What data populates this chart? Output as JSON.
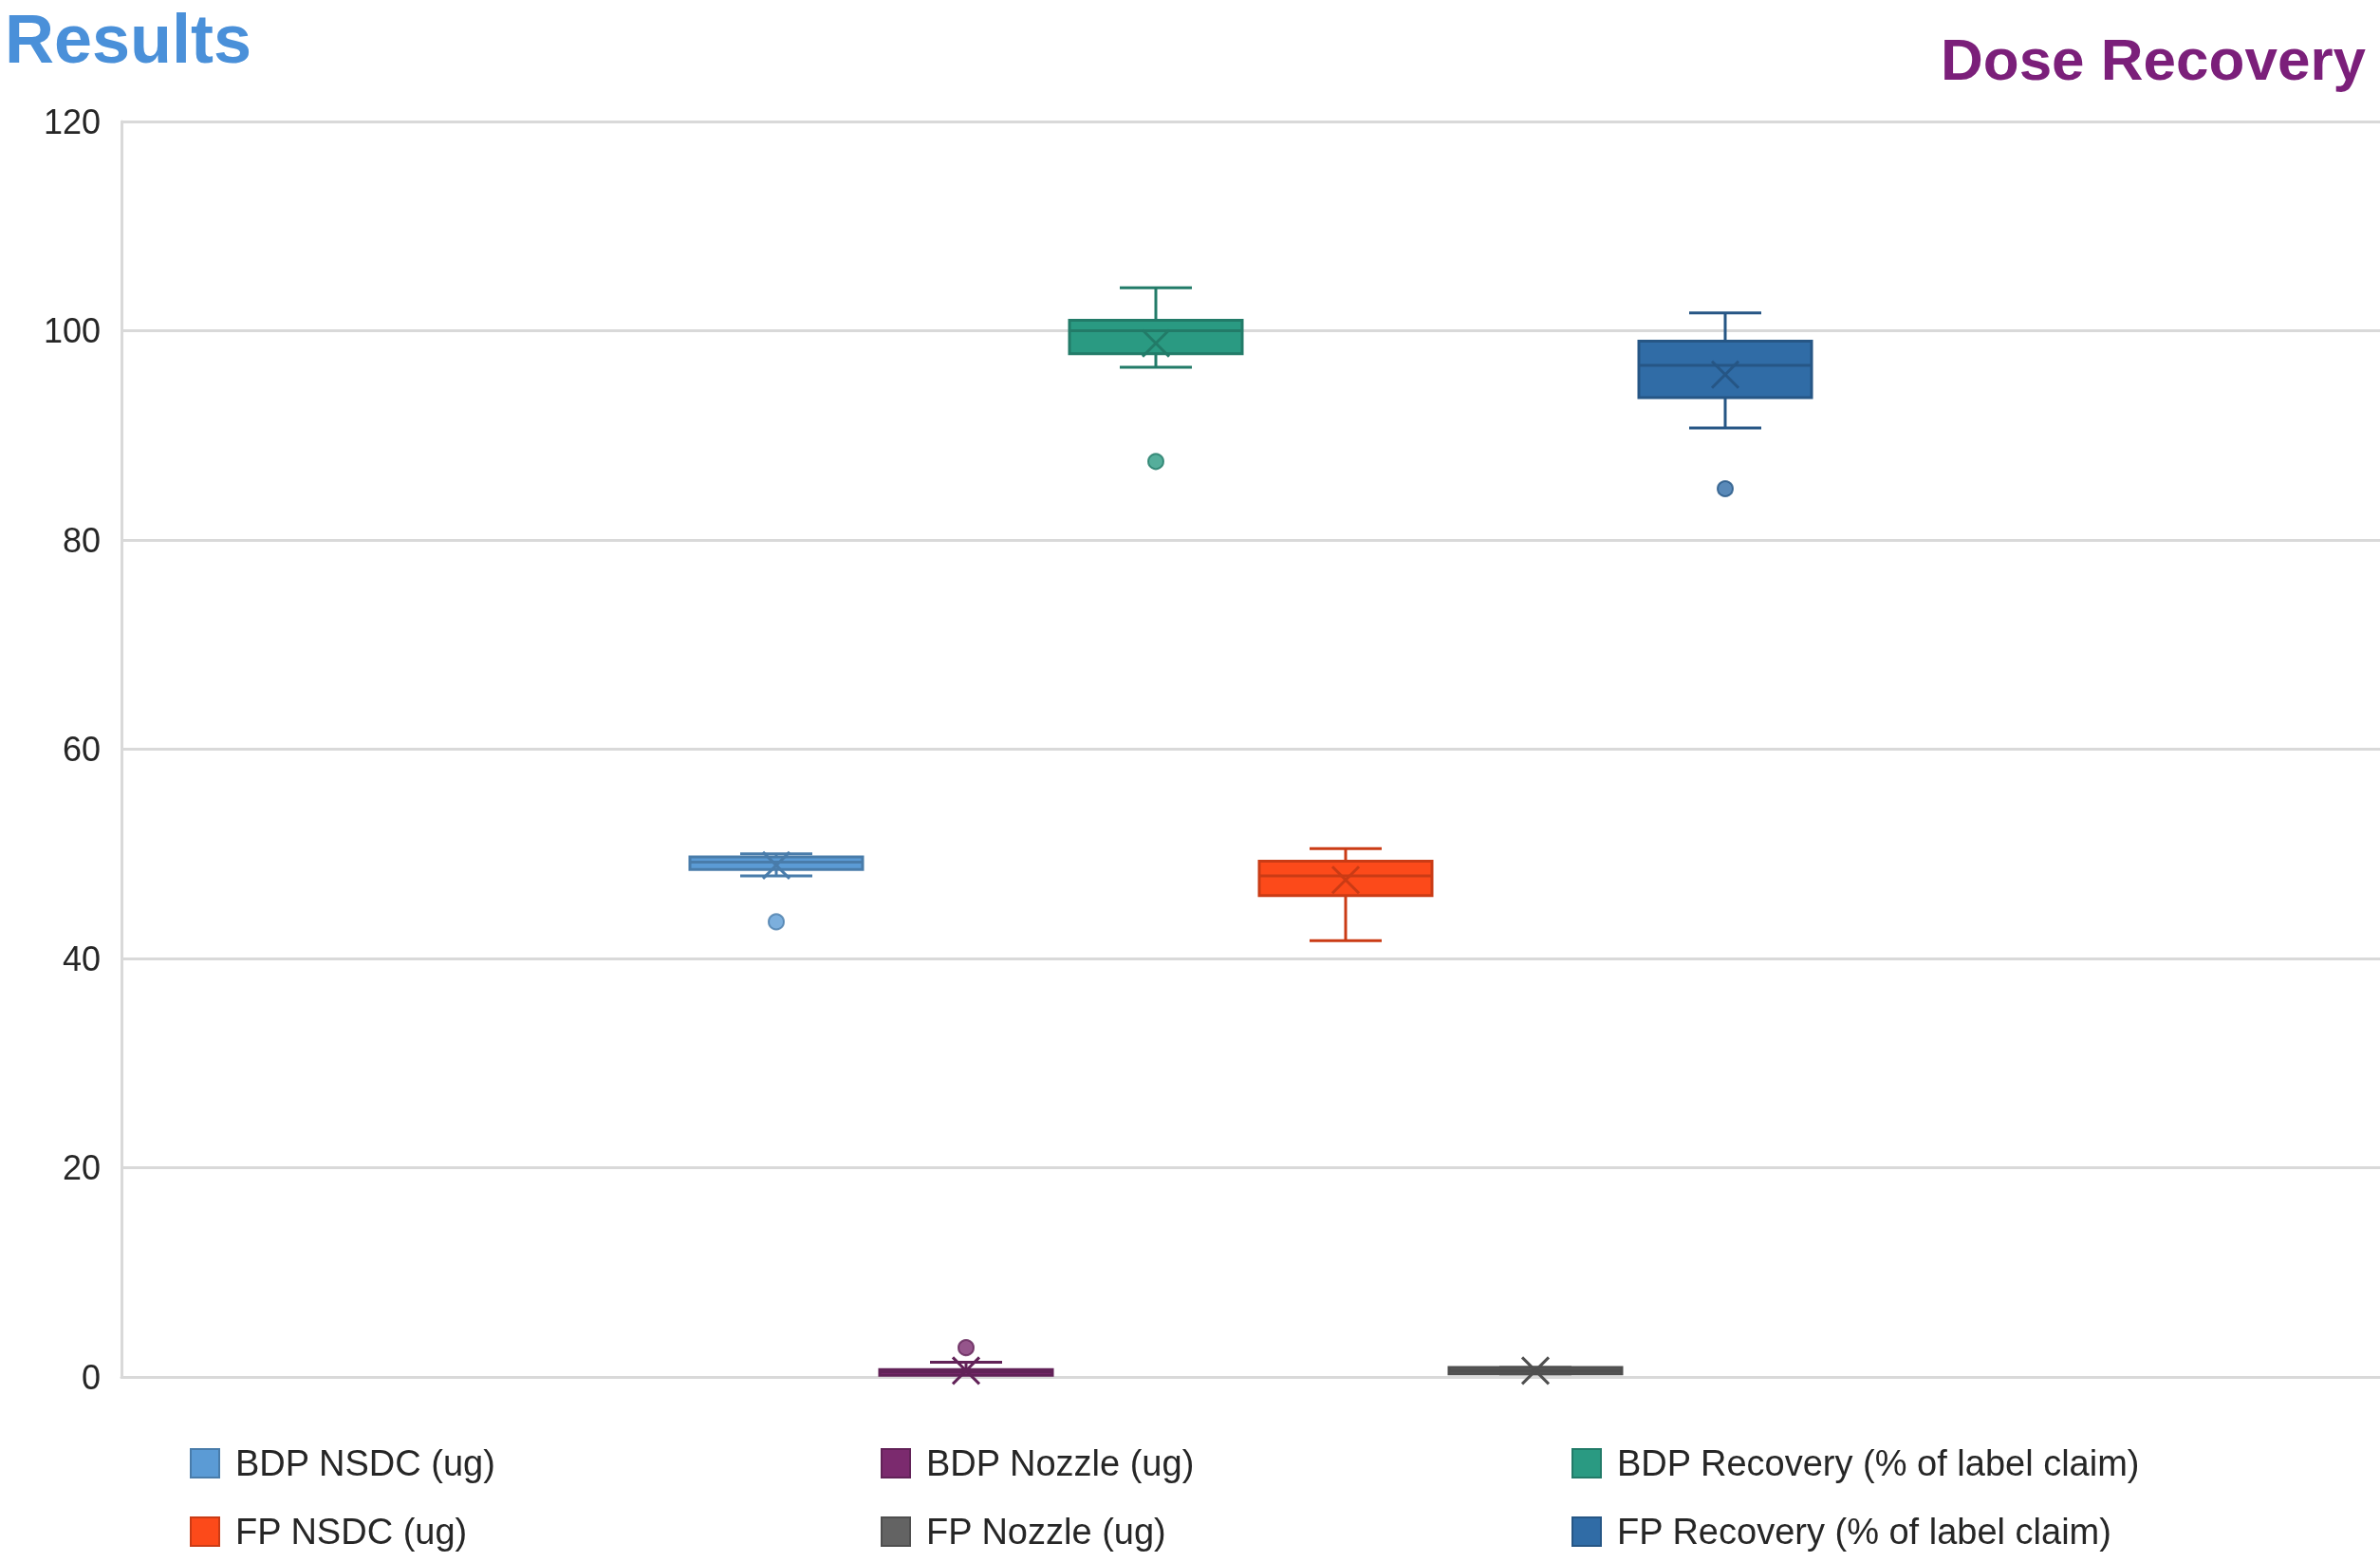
{
  "chart_data": {
    "type": "box",
    "title": "Results",
    "subtitle": "Dose Recovery",
    "categories": [
      null
    ],
    "ylim": [
      0,
      120
    ],
    "yticks": [
      0,
      20,
      40,
      60,
      80,
      100,
      120
    ],
    "grid": "y",
    "legend": "bottom",
    "tick_labels": "y",
    "series": [
      {
        "name": "BDP NSDC (ug)",
        "color": "#5b9bd5",
        "boxes": [
          {
            "low": 47.9,
            "q1": 48.5,
            "median": 49.2,
            "q3": 49.7,
            "high": 50.0,
            "mean": 48.9,
            "outliers": [
              43.5
            ]
          }
        ]
      },
      {
        "name": "BDP Nozzle (ug)",
        "color": "#7b2a6e",
        "boxes": [
          {
            "low": 0.3,
            "q1": 0.3,
            "median": 0.5,
            "q3": 0.7,
            "high": 1.4,
            "mean": 0.6,
            "outliers": [
              2.8
            ]
          }
        ]
      },
      {
        "name": "BDP Recovery (% of label claim)",
        "color": "#2a9a82",
        "boxes": [
          {
            "low": 96.5,
            "q1": 97.8,
            "median": 100.0,
            "q3": 101.0,
            "high": 104.1,
            "mean": 98.8,
            "outliers": [
              87.5
            ]
          }
        ]
      },
      {
        "name": "FP NSDC (ug)",
        "color": "#fc4a1a",
        "boxes": [
          {
            "low": 41.7,
            "q1": 46.0,
            "median": 47.9,
            "q3": 49.3,
            "high": 50.5,
            "mean": 47.5
          }
        ]
      },
      {
        "name": "FP Nozzle (ug)",
        "color": "#636363",
        "boxes": [
          {
            "low": 0.3,
            "q1": 0.3,
            "median": 0.6,
            "q3": 0.9,
            "high": 0.9,
            "mean": 0.6
          }
        ]
      },
      {
        "name": "FP Recovery (% of label claim)",
        "color": "#306ca6",
        "boxes": [
          {
            "low": 90.7,
            "q1": 93.6,
            "median": 96.7,
            "q3": 99.0,
            "high": 101.7,
            "mean": 95.8,
            "outliers": [
              84.9
            ]
          }
        ]
      }
    ]
  }
}
